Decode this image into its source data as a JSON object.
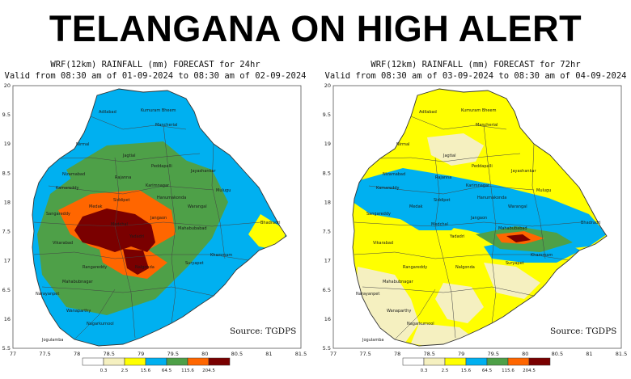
{
  "headline": "TELANGANA ON HIGH ALERT",
  "colors": {
    "class_0": "#ffffff",
    "class_1": "#f5f0c0",
    "class_2": "#ffff00",
    "class_3": "#00b0f0",
    "class_4": "#4ea048",
    "class_5": "#ff6600",
    "class_6": "#7a0000"
  },
  "shared_axes": {
    "x_ticks": [
      "77",
      "77.5",
      "78",
      "78.5",
      "79",
      "79.5",
      "80",
      "80.5",
      "81",
      "81.5"
    ],
    "y_ticks": [
      "20",
      "19.5",
      "19",
      "18.5",
      "18",
      "17.5",
      "17",
      "16.5",
      "16",
      "15.5"
    ],
    "legend_thresholds": [
      "0.3",
      "2.5",
      "15.6",
      "64.5",
      "115.6",
      "204.5"
    ]
  },
  "maps": [
    {
      "title_line1": "WRF(12km) RAINFALL (mm) FORECAST for 24hr",
      "title_line2": "Valid from 08:30 am of 01-09-2024 to 08:30 am of 02-09-2024",
      "source": "Source: TGDPS",
      "districts": [
        "Adilabad",
        "Kumuram Bheem",
        "Mancherial",
        "Nirmal",
        "Jagtial",
        "Nizamabad",
        "Peddapalli",
        "Jayashankar",
        "Rajanna",
        "Karimnagar",
        "Kamareddy",
        "Mulugu",
        "Siddipet",
        "Warangal",
        "Hanumakonda",
        "Sangareddy",
        "Medak",
        "Jangaon",
        "Medchal",
        "Bhadradri",
        "Yadadri",
        "Mahabubabad",
        "Vikarabad",
        "Khammam",
        "Rangareddy",
        "Nalgonda",
        "Suryapet",
        "Mahabubnagar",
        "Narayanpet",
        "Wanaparthy",
        "Nagarkurnool",
        "Jogulamba"
      ]
    },
    {
      "title_line1": "WRF(12km) RAINFALL (mm) FORECAST for 72hr",
      "title_line2": "Valid from 08:30 am of 03-09-2024 to 08:30 am of 04-09-2024",
      "source": "Source: TGDPS",
      "districts": [
        "Adilabad",
        "Kumuram Bheem",
        "Mancherial",
        "Nirmal",
        "Jagtial",
        "Nizamabad",
        "Peddapalli",
        "Jayashankar",
        "Rajanna",
        "Karimnagar",
        "Kamareddy",
        "Mulugu",
        "Siddipet",
        "Warangal",
        "Hanumakonda",
        "Sangareddy",
        "Medak",
        "Jangaon",
        "Medchal",
        "Bhadradri",
        "Yadadri",
        "Mahabubabad",
        "Vikarabad",
        "Khammam",
        "Rangareddy",
        "Nalgonda",
        "Suryapet",
        "Mahabubnagar",
        "Narayanpet",
        "Wanaparthy",
        "Nagarkurnool",
        "Jogulamba"
      ]
    }
  ]
}
